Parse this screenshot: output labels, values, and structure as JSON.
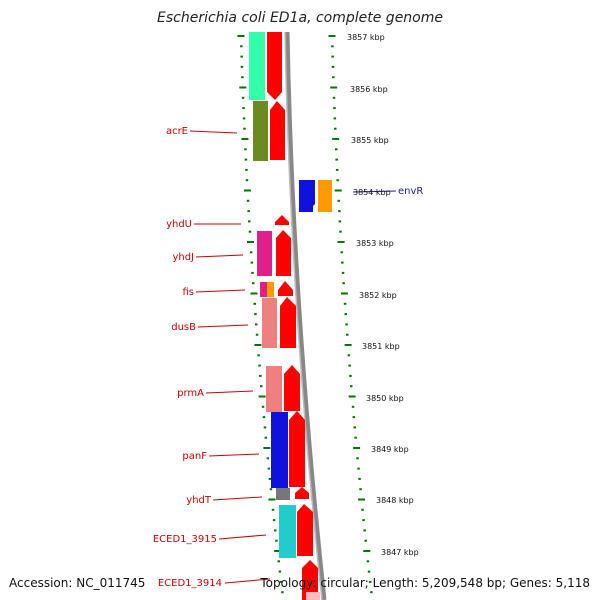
{
  "title": "Escherichia coli ED1a, complete genome",
  "footer": {
    "accession": "Accession: NC_011745",
    "topology": "Topology: circular; Length: 5,209,548 bp; Genes: 5,118"
  },
  "scale_labels": [
    "3857 kbp",
    "3856 kbp",
    "3855 kbp",
    "3854 kbp",
    "3853 kbp",
    "3852 kbp",
    "3851 kbp",
    "3850 kbp",
    "3849 kbp",
    "3848 kbp",
    "3847 kbp"
  ],
  "genes": [
    {
      "name": "acrE",
      "color": "#cc0000"
    },
    {
      "name": "yhdU",
      "color": "#cc0000"
    },
    {
      "name": "yhdJ",
      "color": "#cc0000"
    },
    {
      "name": "fis",
      "color": "#cc0000"
    },
    {
      "name": "dusB",
      "color": "#cc0000"
    },
    {
      "name": "prmA",
      "color": "#cc0000"
    },
    {
      "name": "panF",
      "color": "#cc0000"
    },
    {
      "name": "yhdT",
      "color": "#cc0000"
    },
    {
      "name": "ECED1_3915",
      "color": "#cc0000"
    },
    {
      "name": "ECED1_3914",
      "color": "#cc0000"
    },
    {
      "name": "envR",
      "color": "#1a1aa0"
    }
  ],
  "colors": {
    "cog_teal": "#33ffaa",
    "cog_olive": "#6b8a22",
    "cog_magenta": "#e0208a",
    "cog_pink": "#ee8080",
    "cog_blue": "#1111dd",
    "cog_cyan": "#22cccc",
    "cog_orange": "#ff9900",
    "cog_gray": "#777777",
    "gene_red": "#ff0000",
    "tick_green": "#007700"
  }
}
